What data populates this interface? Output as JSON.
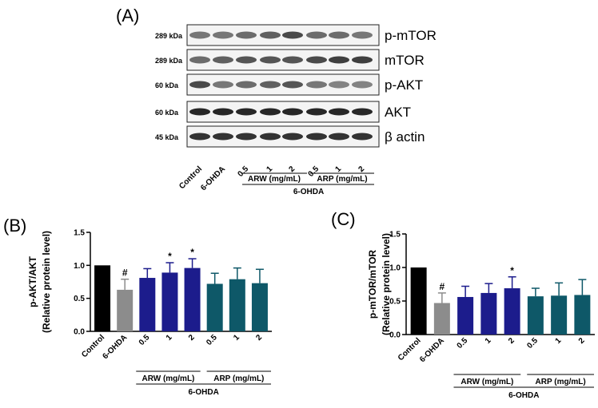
{
  "panels": {
    "a": "(A)",
    "b": "(B)",
    "c": "(C)"
  },
  "blot": {
    "proteins": [
      {
        "kda": "289 kDa",
        "name": "p-mTOR"
      },
      {
        "kda": "289 kDa",
        "name": "mTOR"
      },
      {
        "kda": "60 kDa",
        "name": "p-AKT"
      },
      {
        "kda": "60 kDa",
        "name": "AKT"
      },
      {
        "kda": "45 kDa",
        "name": "β actin"
      }
    ],
    "lanes": [
      "Control",
      "6-OHDA",
      "0.5",
      "1",
      "2",
      "0.5",
      "1",
      "2"
    ],
    "groups": [
      "ARW (mg/mL)",
      "ARP (mg/mL)"
    ],
    "treatment": "6-OHDA"
  },
  "colors": {
    "control": "#000000",
    "ohda": "#8c8c8c",
    "arw": "#1c1c8c",
    "arp": "#0e5868"
  },
  "chart_data": [
    {
      "type": "bar",
      "panel": "(B)",
      "ylabel": "p-AKT/AKT",
      "ylabel2": "(Relative protein level)",
      "categories": [
        "Control",
        "6-OHDA",
        "0.5",
        "1",
        "2",
        "0.5",
        "1",
        "2"
      ],
      "values": [
        1.0,
        0.63,
        0.81,
        0.89,
        0.96,
        0.72,
        0.79,
        0.73
      ],
      "errors": [
        0.0,
        0.16,
        0.14,
        0.15,
        0.14,
        0.16,
        0.17,
        0.21
      ],
      "marks": [
        "",
        "#",
        "",
        "*",
        "*",
        "",
        "",
        ""
      ],
      "ylim": [
        0,
        1.5
      ],
      "yticks": [
        "0.0",
        "0.5",
        "1.0",
        "1.5"
      ],
      "groups": [
        "ARW (mg/mL)",
        "ARP (mg/mL)"
      ],
      "treatment": "6-OHDA"
    },
    {
      "type": "bar",
      "panel": "(C)",
      "ylabel": "p-mTOR/mTOR",
      "ylabel2": "(Relative protein level)",
      "categories": [
        "Control",
        "6-OHDA",
        "0.5",
        "1",
        "2",
        "0.5",
        "1",
        "2"
      ],
      "values": [
        1.0,
        0.47,
        0.56,
        0.62,
        0.69,
        0.57,
        0.58,
        0.59
      ],
      "errors": [
        0.0,
        0.15,
        0.16,
        0.14,
        0.17,
        0.12,
        0.19,
        0.23
      ],
      "marks": [
        "",
        "#",
        "",
        "",
        "*",
        "",
        "",
        ""
      ],
      "ylim": [
        0,
        1.5
      ],
      "yticks": [
        "0.0",
        "0.5",
        "1.0",
        "1.5"
      ],
      "groups": [
        "ARW (mg/mL)",
        "ARP (mg/mL)"
      ],
      "treatment": "6-OHDA"
    }
  ]
}
